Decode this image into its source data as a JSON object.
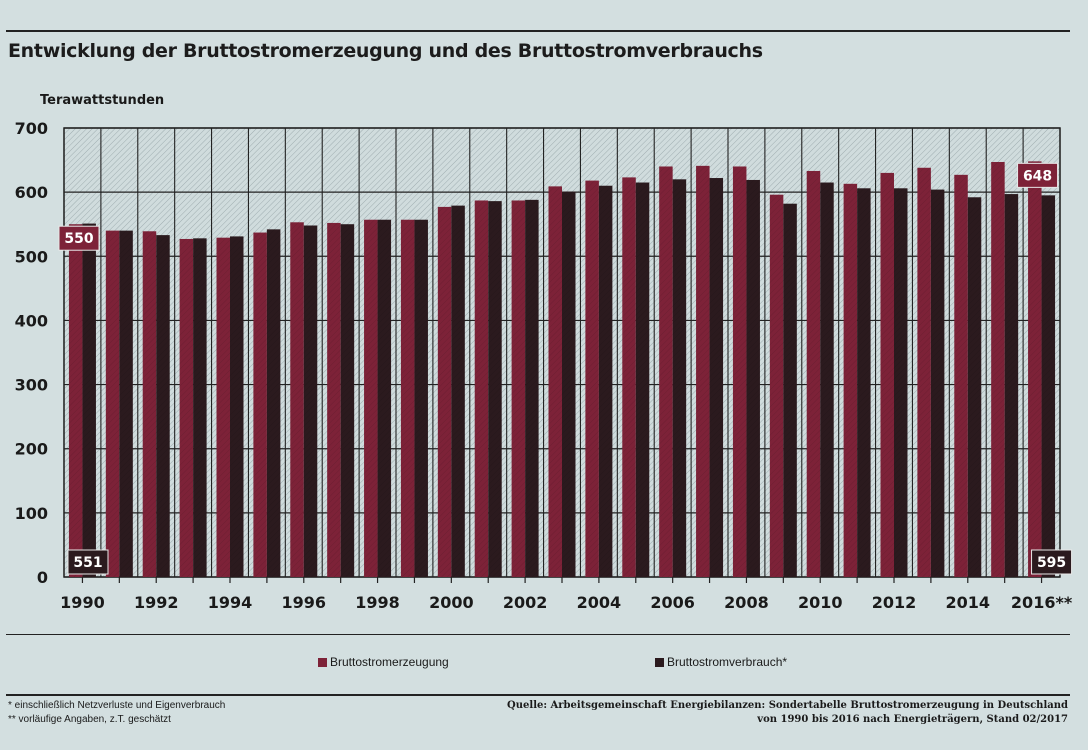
{
  "chart_data": {
    "type": "bar",
    "title": "Entwicklung der Bruttostromerzeugung und des Bruttostromverbrauchs",
    "unit_label": "Terawattstunden",
    "categories": [
      "1990",
      "1991",
      "1992",
      "1993",
      "1994",
      "1995",
      "1996",
      "1997",
      "1998",
      "1999",
      "2000",
      "2001",
      "2002",
      "2003",
      "2004",
      "2005",
      "2006",
      "2007",
      "2008",
      "2009",
      "2010",
      "2011",
      "2012",
      "2013",
      "2014",
      "2015",
      "2016"
    ],
    "x_tick_labels": [
      "1990",
      "",
      "1992",
      "",
      "1994",
      "",
      "1996",
      "",
      "1998",
      "",
      "2000",
      "",
      "2002",
      "",
      "2004",
      "",
      "2006",
      "",
      "2008",
      "",
      "2010",
      "",
      "2012",
      "",
      "2014",
      "",
      "2016**"
    ],
    "ylim": [
      0,
      700
    ],
    "y_ticks": [
      0,
      100,
      200,
      300,
      400,
      500,
      600,
      700
    ],
    "grid": true,
    "series": [
      {
        "name": "Bruttostromerzeugung",
        "color": "#7d2238",
        "values": [
          550,
          540,
          539,
          527,
          529,
          537,
          553,
          552,
          557,
          557,
          577,
          587,
          587,
          609,
          618,
          623,
          640,
          641,
          640,
          596,
          633,
          613,
          630,
          638,
          627,
          647,
          648
        ]
      },
      {
        "name": "Bruttostromverbrauch*",
        "color": "#2b1a1e",
        "values": [
          551,
          540,
          533,
          528,
          531,
          542,
          548,
          550,
          557,
          557,
          579,
          586,
          588,
          601,
          610,
          615,
          620,
          622,
          619,
          582,
          615,
          606,
          606,
          604,
          592,
          597,
          595
        ]
      }
    ],
    "data_labels": [
      {
        "series": 0,
        "index": 0,
        "text": "550"
      },
      {
        "series": 1,
        "index": 0,
        "text": "551"
      },
      {
        "series": 0,
        "index": 26,
        "text": "648"
      },
      {
        "series": 1,
        "index": 26,
        "text": "595"
      }
    ],
    "legend_position": "bottom"
  },
  "footnotes": {
    "note1": "* einschließlich Netzverluste und Eigenverbrauch",
    "note2": "** vorläufige Angaben, z.T. geschätzt",
    "source_line1": "Quelle: Arbeitsgemeinschaft Energiebilanzen: Sondertabelle Bruttostromerzeugung in Deutschland",
    "source_line2": "von 1990 bis 2016 nach Energieträgern, Stand 02/2017"
  },
  "colors": {
    "background": "#d3dfe0",
    "generation": "#7d2238",
    "consumption": "#2b1a1e"
  }
}
